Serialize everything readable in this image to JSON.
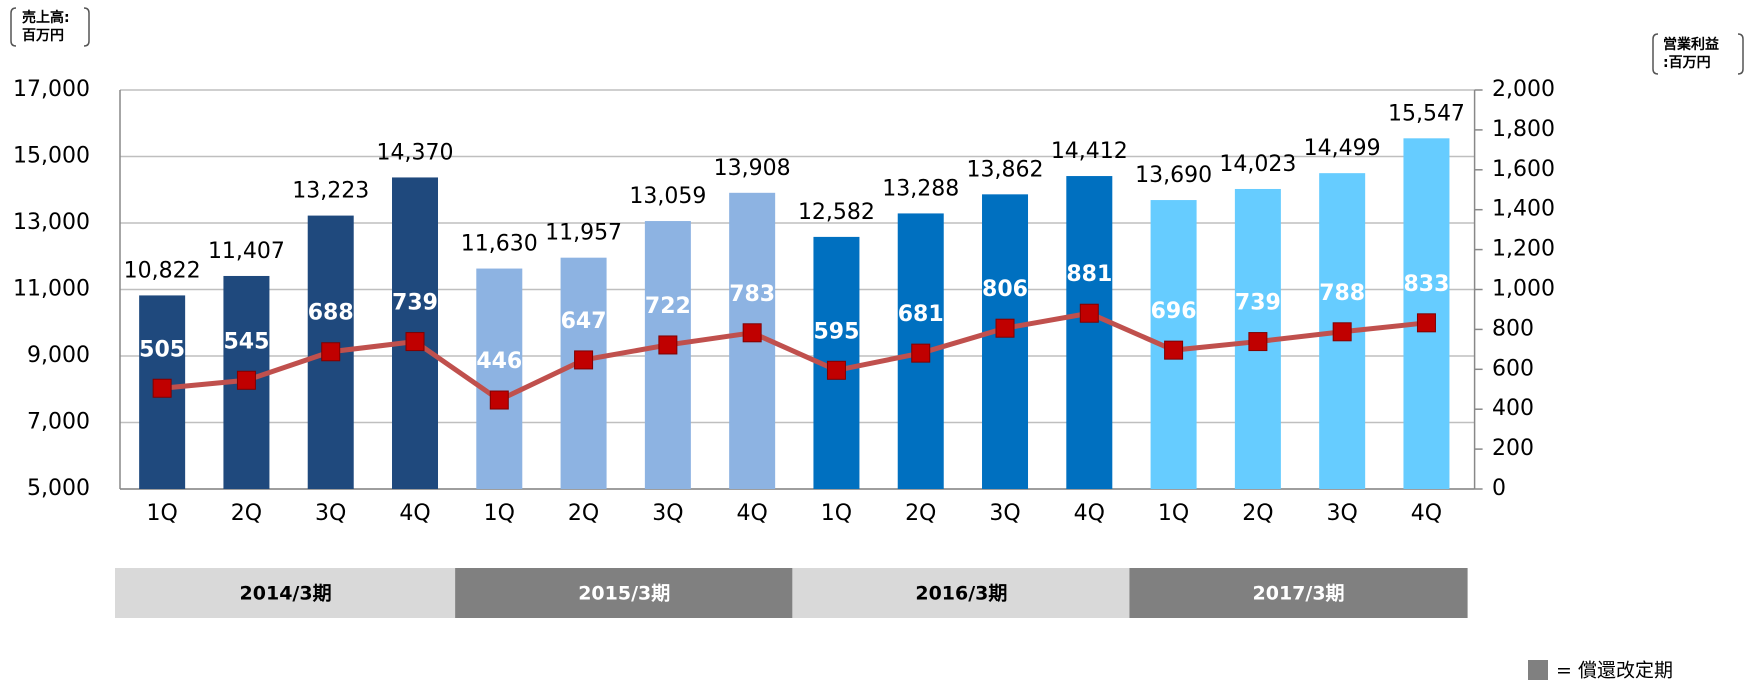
{
  "chart_data": {
    "type": "bar_line",
    "y_title": [
      "売上高:",
      "百万円"
    ],
    "y2_title": [
      "営業利益",
      ":百万円"
    ],
    "categories": [
      "1Q",
      "2Q",
      "3Q",
      "4Q",
      "1Q",
      "2Q",
      "3Q",
      "4Q",
      "1Q",
      "2Q",
      "3Q",
      "4Q",
      "1Q",
      "2Q",
      "3Q",
      "4Q"
    ],
    "series": [
      {
        "type": "bar",
        "colors": [
          "#1f497d",
          "#1f497d",
          "#1f497d",
          "#1f497d",
          "#8db3e2",
          "#8db3e2",
          "#8db3e2",
          "#8db3e2",
          "#0070c0",
          "#0070c0",
          "#0070c0",
          "#0070c0",
          "#66ccff",
          "#66ccff",
          "#66ccff",
          "#66ccff"
        ],
        "values": [
          10822,
          11407,
          13223,
          14370,
          11630,
          11957,
          13059,
          13908,
          12582,
          13288,
          13862,
          14412,
          13690,
          14023,
          14499,
          15547
        ],
        "value_labels": [
          "10,822",
          "11,407",
          "13,223",
          "14,370",
          "11,630",
          "11,957",
          "13,059",
          "13,908",
          "12,582",
          "13,288",
          "13,862",
          "14,412",
          "13,690",
          "14,023",
          "14,499",
          "15,547"
        ]
      },
      {
        "type": "line",
        "axis": "y2",
        "color": "#c0504d",
        "marker_color": "#c00000",
        "values": [
          505,
          545,
          688,
          739,
          446,
          647,
          722,
          783,
          595,
          681,
          806,
          881,
          696,
          739,
          788,
          833
        ]
      }
    ],
    "groups": [
      {
        "label": "2014/3期",
        "color": "#d9d9d9",
        "text_color": "#000000"
      },
      {
        "label": "2015/3期",
        "color": "#808080",
        "text_color": "#ffffff"
      },
      {
        "label": "2016/3期",
        "color": "#d9d9d9",
        "text_color": "#000000"
      },
      {
        "label": "2017/3期",
        "color": "#808080",
        "text_color": "#ffffff"
      }
    ],
    "legend": {
      "label": "= 償還改定期",
      "color": "#808080"
    },
    "ylim": [
      5000,
      17000
    ],
    "yticks": [
      {
        "value": 5000,
        "label": "5,000"
      },
      {
        "value": 7000,
        "label": "7,000"
      },
      {
        "value": 9000,
        "label": "9,000"
      },
      {
        "value": 11000,
        "label": "11,000"
      },
      {
        "value": 13000,
        "label": "13,000"
      },
      {
        "value": 15000,
        "label": "15,000"
      },
      {
        "value": 17000,
        "label": "17,000"
      }
    ],
    "y2lim": [
      0,
      2000
    ],
    "y2ticks": [
      0,
      200,
      400,
      600,
      800,
      {
        "value": 1000,
        "label": "1,000"
      },
      {
        "value": 1200,
        "label": "1,200"
      },
      {
        "value": 1400,
        "label": "1,400"
      },
      {
        "value": 1600,
        "label": "1,600"
      },
      {
        "value": 1800,
        "label": "1,800"
      },
      {
        "value": 2000,
        "label": "2,000"
      }
    ],
    "grid": true
  }
}
